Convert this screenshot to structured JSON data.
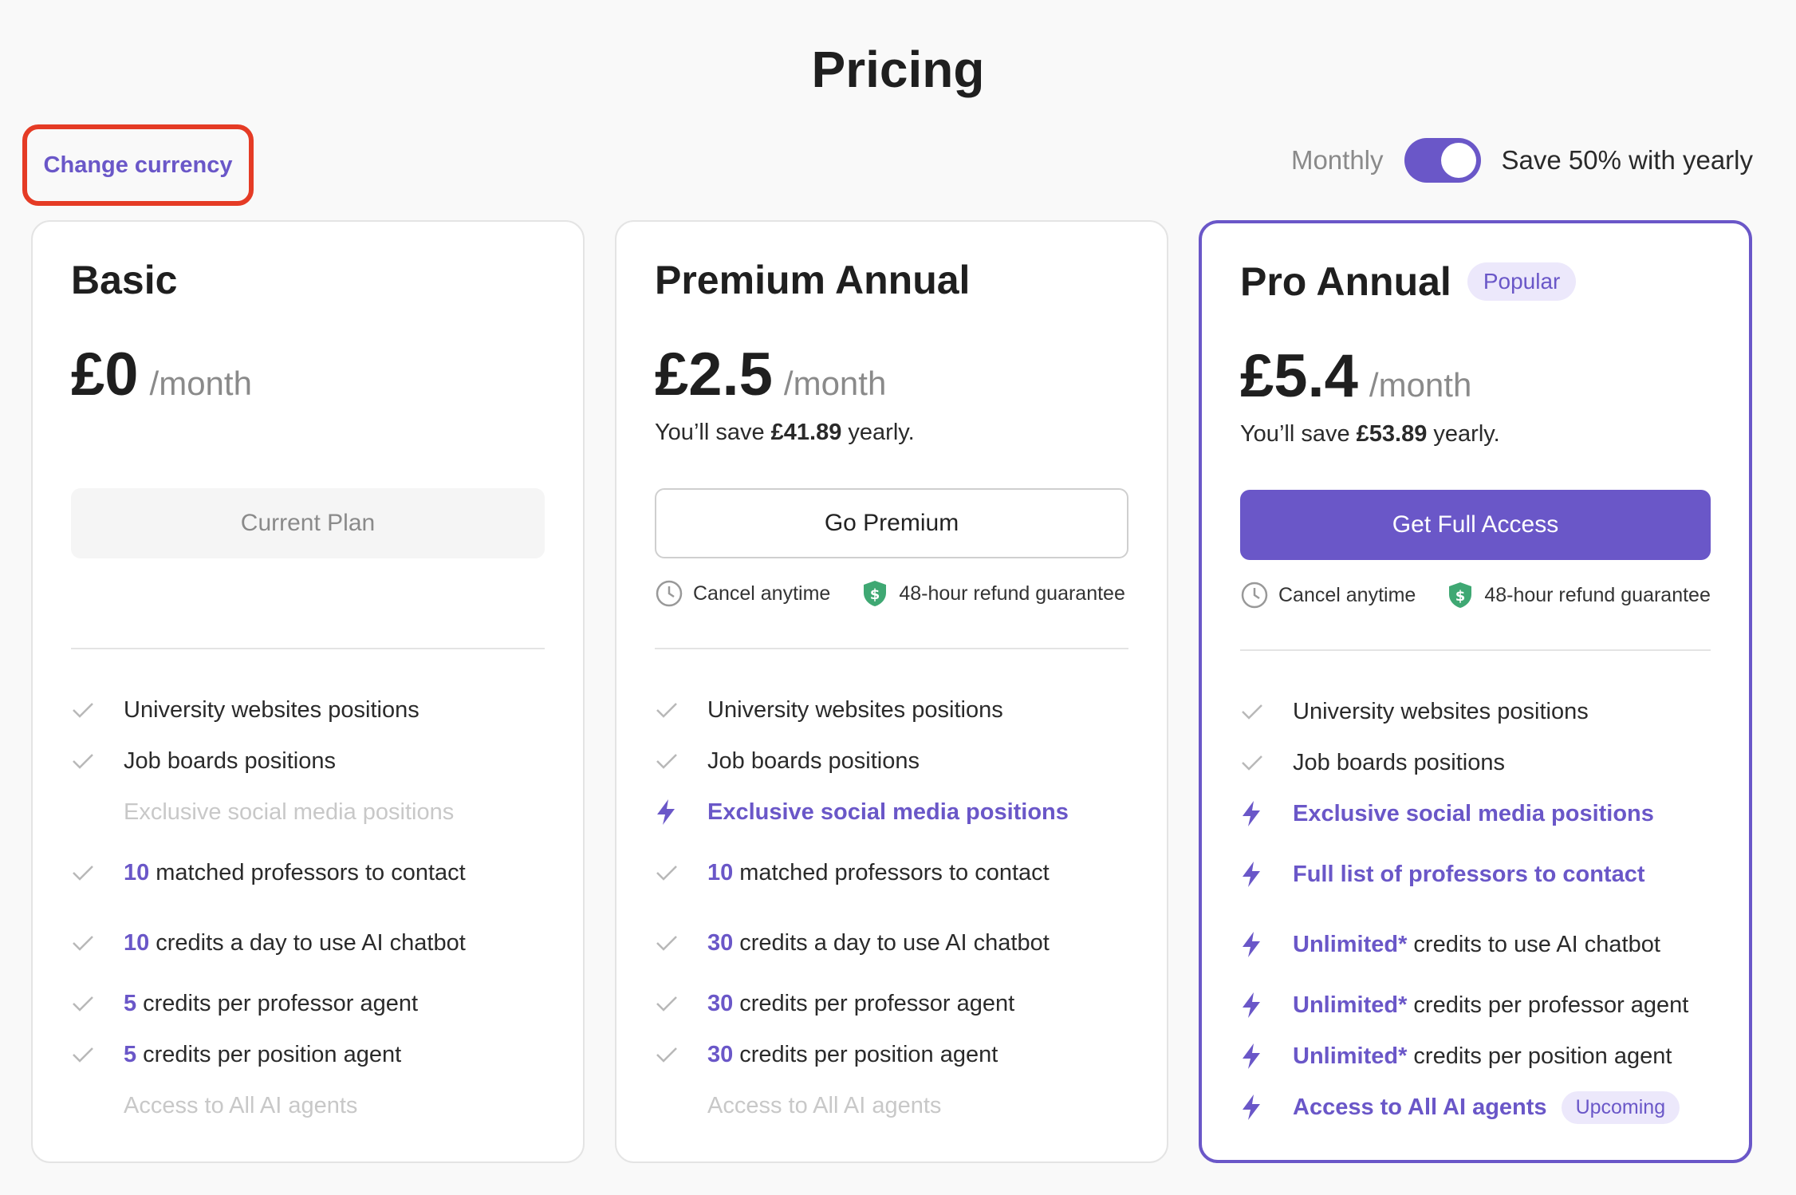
{
  "page": {
    "title": "Pricing"
  },
  "header": {
    "change_currency": "Change currency",
    "toggle": {
      "left_label": "Monthly",
      "right_label": "Save 50% with yearly",
      "yearly_selected": true
    }
  },
  "colors": {
    "accent": "#6a57c8",
    "annotation_box": "#e53b25",
    "shield": "#3fa873"
  },
  "plans": [
    {
      "name": "Basic",
      "price": "£0",
      "per": "/month",
      "savings": null,
      "cta": "Current Plan",
      "features": [
        {
          "num": "",
          "text": "University websites positions"
        },
        {
          "num": "",
          "text": "Job boards positions"
        },
        {
          "num": "",
          "text": "Exclusive social media positions"
        },
        {
          "num": "10",
          "text": "matched professors to contact"
        },
        {
          "num": "10",
          "text": "credits a day to use AI chatbot"
        },
        {
          "num": "5",
          "text": "credits per professor agent"
        },
        {
          "num": "5",
          "text": "credits per position agent"
        },
        {
          "num": "",
          "text": "Access to All AI agents"
        }
      ]
    },
    {
      "name": "Premium Annual",
      "price": "£2.5",
      "per": "/month",
      "savings_prefix": "You’ll save ",
      "savings_amount": "£41.89",
      "savings_suffix": " yearly.",
      "cta": "Go Premium",
      "cancel": "Cancel anytime",
      "refund": "48-hour refund guarantee",
      "features": [
        {
          "num": "",
          "text": "University websites positions"
        },
        {
          "num": "",
          "text": "Job boards positions"
        },
        {
          "num": "",
          "text": "Exclusive social media positions"
        },
        {
          "num": "10",
          "text": "matched professors to contact"
        },
        {
          "num": "30",
          "text": "credits a day to use AI chatbot"
        },
        {
          "num": "30",
          "text": "credits per professor agent"
        },
        {
          "num": "30",
          "text": "credits per position agent"
        },
        {
          "num": "",
          "text": "Access to All AI agents"
        }
      ]
    },
    {
      "name": "Pro Annual",
      "badge": "Popular",
      "price": "£5.4",
      "per": "/month",
      "savings_prefix": "You’ll save ",
      "savings_amount": "£53.89",
      "savings_suffix": " yearly.",
      "cta": "Get Full Access",
      "cancel": "Cancel anytime",
      "refund": "48-hour refund guarantee",
      "features": [
        {
          "num": "",
          "text": "University websites positions"
        },
        {
          "num": "",
          "text": "Job boards positions"
        },
        {
          "num": "",
          "text": "Exclusive social media positions"
        },
        {
          "num": "",
          "text": "Full list of professors to contact"
        },
        {
          "num": "Unlimited*",
          "text": "credits to use AI chatbot"
        },
        {
          "num": "Unlimited*",
          "text": "credits per professor agent"
        },
        {
          "num": "Unlimited*",
          "text": "credits per position agent"
        },
        {
          "num": "",
          "text": "Access to All AI agents",
          "tag": "Upcoming"
        }
      ]
    }
  ]
}
